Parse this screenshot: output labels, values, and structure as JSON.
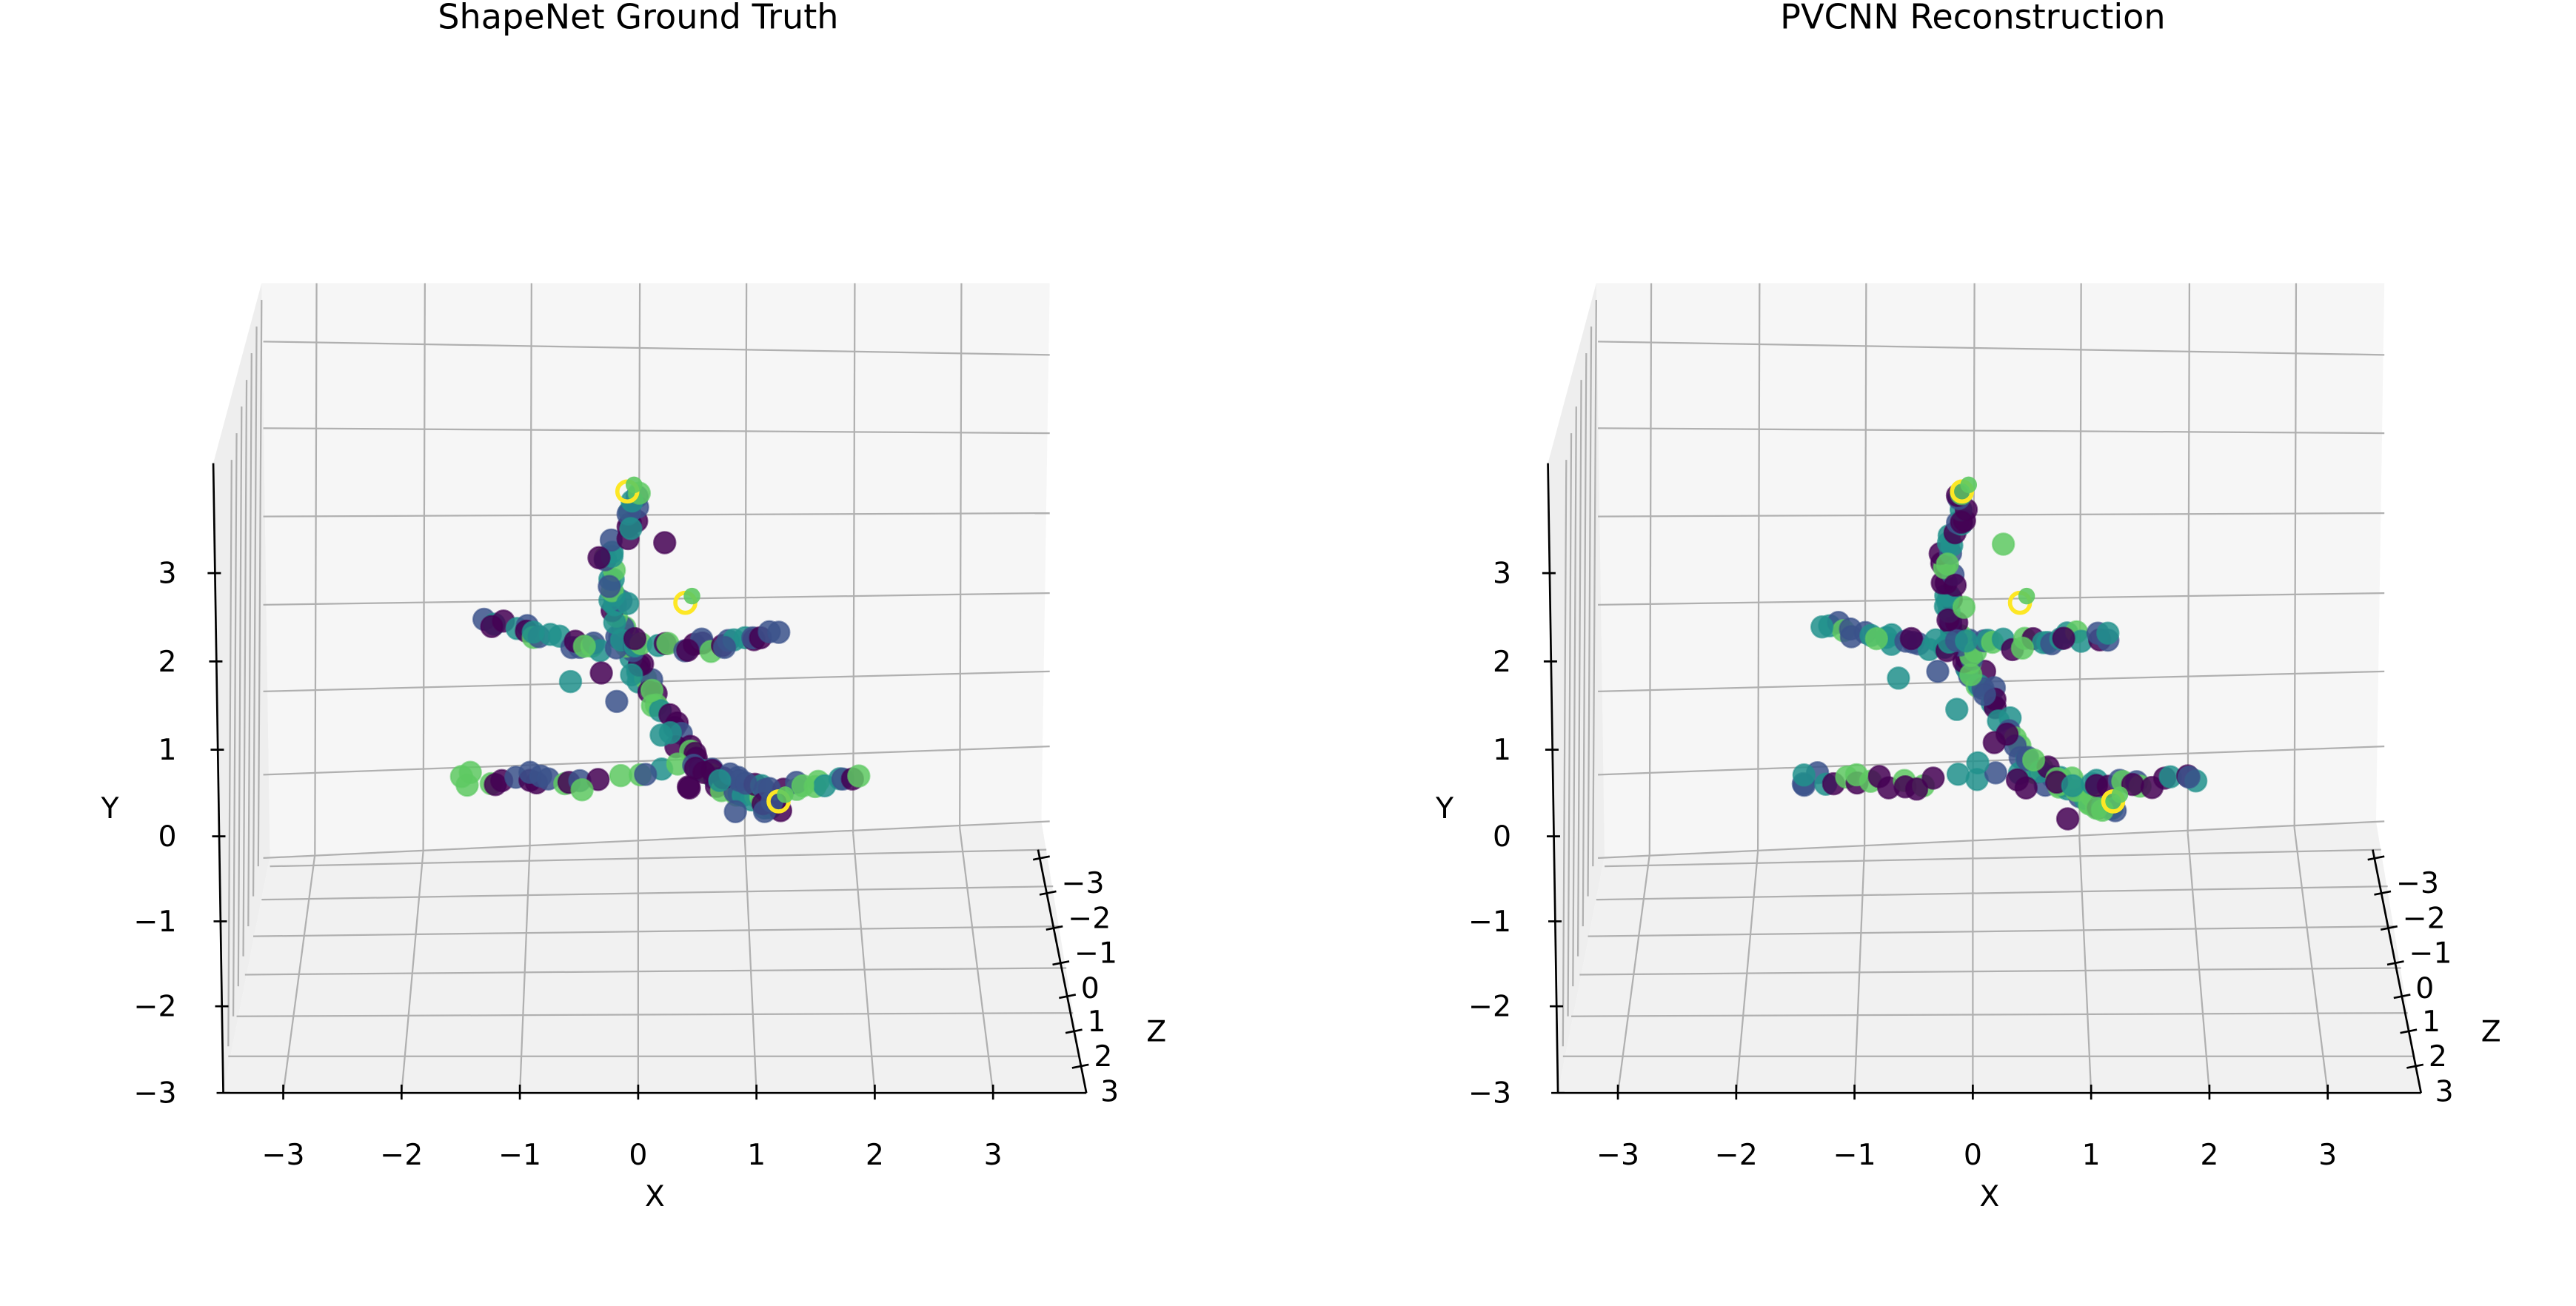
{
  "chart_data": [
    {
      "type": "scatter",
      "title": "ShapeNet Ground Truth",
      "xlabel": "X",
      "ylabel": "Y",
      "zlabel": "Z",
      "xlim": [
        -3.5,
        3.5
      ],
      "ylim": [
        -3,
        4
      ],
      "zlim": [
        -3.5,
        3.5
      ],
      "x_ticks": [
        "−3",
        "−2",
        "−1",
        "0",
        "1",
        "2",
        "3"
      ],
      "y_ticks": [
        "−3",
        "−2",
        "−1",
        "0",
        "1",
        "2",
        "3"
      ],
      "z_ticks": [
        "−3",
        "−2",
        "−1",
        "0",
        "1",
        "2",
        "3"
      ],
      "grid": true,
      "colormap": [
        "#440154",
        "#3b528b",
        "#21918c",
        "#5ec962",
        "#fde725"
      ],
      "points": [
        [
          0.0,
          1.9,
          0.0
        ],
        [
          0.1,
          1.7,
          0.4
        ],
        [
          0.2,
          1.4,
          0.9
        ],
        [
          0.35,
          1.1,
          1.3
        ],
        [
          0.55,
          0.9,
          1.6
        ],
        [
          0.8,
          0.8,
          1.9
        ],
        [
          0.95,
          0.8,
          2.1
        ],
        [
          -0.05,
          2.1,
          -0.3
        ],
        [
          -0.1,
          2.3,
          -0.6
        ],
        [
          -0.1,
          2.6,
          -0.9
        ],
        [
          -0.15,
          2.9,
          -1.2
        ],
        [
          0.1,
          3.2,
          -1.5
        ],
        [
          0.15,
          3.5,
          -1.7
        ],
        [
          -1.2,
          2.3,
          -0.5
        ],
        [
          -0.8,
          2.2,
          -0.4
        ],
        [
          -0.45,
          2.1,
          -0.3
        ],
        [
          0.4,
          2.1,
          -0.3
        ],
        [
          0.8,
          2.1,
          -0.3
        ],
        [
          1.2,
          2.2,
          -0.4
        ],
        [
          -1.6,
          0.9,
          1.2
        ],
        [
          -1.1,
          0.9,
          1.2
        ],
        [
          -0.6,
          0.85,
          1.3
        ],
        [
          0.7,
          0.9,
          1.6
        ],
        [
          1.2,
          0.9,
          1.5
        ],
        [
          1.7,
          0.95,
          1.4
        ],
        [
          -0.6,
          1.8,
          0.0
        ],
        [
          -0.4,
          2.0,
          0.6
        ],
        [
          0.2,
          1.0,
          1.7
        ],
        [
          0.6,
          0.7,
          2.0
        ],
        [
          0.9,
          1.0,
          2.2
        ],
        [
          0.4,
          3.0,
          -1.3
        ],
        [
          -0.2,
          1.6,
          0.5
        ],
        [
          0.1,
          1.3,
          1.0
        ],
        [
          0.3,
          0.8,
          1.5
        ],
        [
          0.9,
          0.7,
          1.9
        ],
        [
          0.0,
          2.4,
          -0.8
        ],
        [
          -0.1,
          1.0,
          1.1
        ]
      ]
    },
    {
      "type": "scatter",
      "title": "PVCNN Reconstruction",
      "xlabel": "X",
      "ylabel": "Y",
      "zlabel": "Z",
      "xlim": [
        -3.5,
        3.5
      ],
      "ylim": [
        -3,
        4
      ],
      "zlim": [
        -3.5,
        3.5
      ],
      "x_ticks": [
        "−3",
        "−2",
        "−1",
        "0",
        "1",
        "2",
        "3"
      ],
      "y_ticks": [
        "−3",
        "−2",
        "−1",
        "0",
        "1",
        "2",
        "3"
      ],
      "z_ticks": [
        "−3",
        "−2",
        "−1",
        "0",
        "1",
        "2",
        "3"
      ],
      "grid": true,
      "colormap": [
        "#440154",
        "#3b528b",
        "#21918c",
        "#5ec962",
        "#fde725"
      ],
      "points": [
        [
          0.0,
          1.9,
          0.0
        ],
        [
          0.1,
          1.7,
          0.4
        ],
        [
          0.2,
          1.4,
          0.9
        ],
        [
          0.35,
          1.1,
          1.3
        ],
        [
          0.55,
          0.9,
          1.6
        ],
        [
          0.8,
          0.8,
          1.9
        ],
        [
          0.95,
          0.8,
          2.1
        ],
        [
          -0.05,
          2.1,
          -0.3
        ],
        [
          -0.1,
          2.3,
          -0.6
        ],
        [
          -0.1,
          2.6,
          -0.9
        ],
        [
          -0.1,
          2.9,
          -1.2
        ],
        [
          0.05,
          3.2,
          -1.5
        ],
        [
          0.1,
          3.5,
          -1.7
        ],
        [
          -1.2,
          2.3,
          -0.5
        ],
        [
          -0.8,
          2.2,
          -0.4
        ],
        [
          -0.45,
          2.1,
          -0.3
        ],
        [
          0.4,
          2.1,
          -0.3
        ],
        [
          0.8,
          2.15,
          -0.35
        ],
        [
          1.2,
          2.2,
          -0.4
        ],
        [
          -1.6,
          0.9,
          1.2
        ],
        [
          -1.1,
          0.9,
          1.2
        ],
        [
          -0.6,
          0.85,
          1.3
        ],
        [
          0.7,
          0.9,
          1.6
        ],
        [
          1.2,
          0.9,
          1.5
        ],
        [
          1.7,
          0.95,
          1.4
        ],
        [
          -0.6,
          1.8,
          0.0
        ],
        [
          -0.4,
          2.0,
          0.6
        ],
        [
          0.2,
          1.0,
          1.7
        ],
        [
          0.6,
          0.7,
          2.0
        ],
        [
          0.85,
          1.05,
          2.2
        ],
        [
          0.35,
          3.0,
          -1.3
        ],
        [
          -0.2,
          1.6,
          0.5
        ],
        [
          0.1,
          1.3,
          1.0
        ],
        [
          0.3,
          0.8,
          1.5
        ],
        [
          0.9,
          0.7,
          1.9
        ],
        [
          0.0,
          2.4,
          -0.8
        ],
        [
          -0.1,
          1.0,
          1.1
        ]
      ]
    }
  ]
}
